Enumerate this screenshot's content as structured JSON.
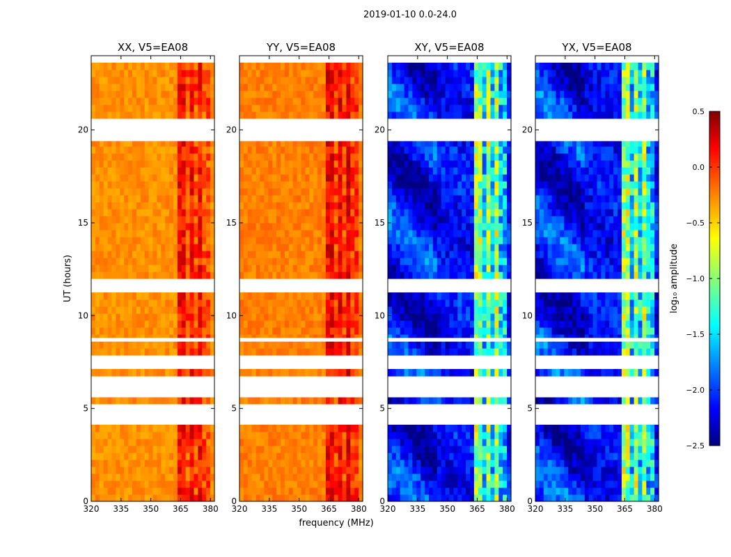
{
  "chart_data": {
    "type": "heatmap",
    "suptitle": "2019-01-10 0.0-24.0",
    "xlabel": "frequency (MHz)",
    "ylabel": "UT (hours)",
    "xlim": [
      320,
      382
    ],
    "ylim": [
      0,
      24
    ],
    "xticks": [
      320,
      335,
      350,
      365,
      380
    ],
    "yticks": [
      0,
      5,
      10,
      15,
      20
    ],
    "rfi_band_mhz": [
      363,
      380
    ],
    "rfi_subband_edges_mhz": [
      363,
      368,
      372.5,
      376.5,
      380
    ],
    "flagged_time_ranges_hours": [
      [
        4.2,
        5.1
      ],
      [
        5.6,
        6.6
      ],
      [
        7.2,
        7.7
      ],
      [
        8.6,
        8.8
      ],
      [
        11.4,
        11.9
      ],
      [
        19.4,
        20.5
      ],
      [
        23.8,
        24.0
      ]
    ],
    "panels": [
      {
        "id": "xx",
        "title": "XX, V5=EA08",
        "polarization": "XX",
        "antenna": "EA08",
        "log10_amplitude_typical": -0.3,
        "log10_amplitude_rfi": 0.1
      },
      {
        "id": "yy",
        "title": "YY, V5=EA08",
        "polarization": "YY",
        "antenna": "EA08",
        "log10_amplitude_typical": -0.25,
        "log10_amplitude_rfi": 0.15
      },
      {
        "id": "xy",
        "title": "XY, V5=EA08",
        "polarization": "XY",
        "antenna": "EA08",
        "log10_amplitude_typical": -2.1,
        "log10_amplitude_rfi": -0.9
      },
      {
        "id": "yx",
        "title": "YX, V5=EA08",
        "polarization": "YX",
        "antenna": "EA08",
        "log10_amplitude_typical": -2.1,
        "log10_amplitude_rfi": -0.9
      }
    ],
    "colorbar": {
      "label": "log₁₀ amplitude",
      "range": [
        -2.5,
        0.5
      ],
      "ticks": [
        0.5,
        0.0,
        -0.5,
        -1.0,
        -1.5,
        -2.0,
        -2.5
      ],
      "tick_labels": [
        "0.5",
        "0.0",
        "−0.5",
        "−1.0",
        "−1.5",
        "−2.0",
        "−2.5"
      ],
      "colormap": "jet"
    }
  }
}
